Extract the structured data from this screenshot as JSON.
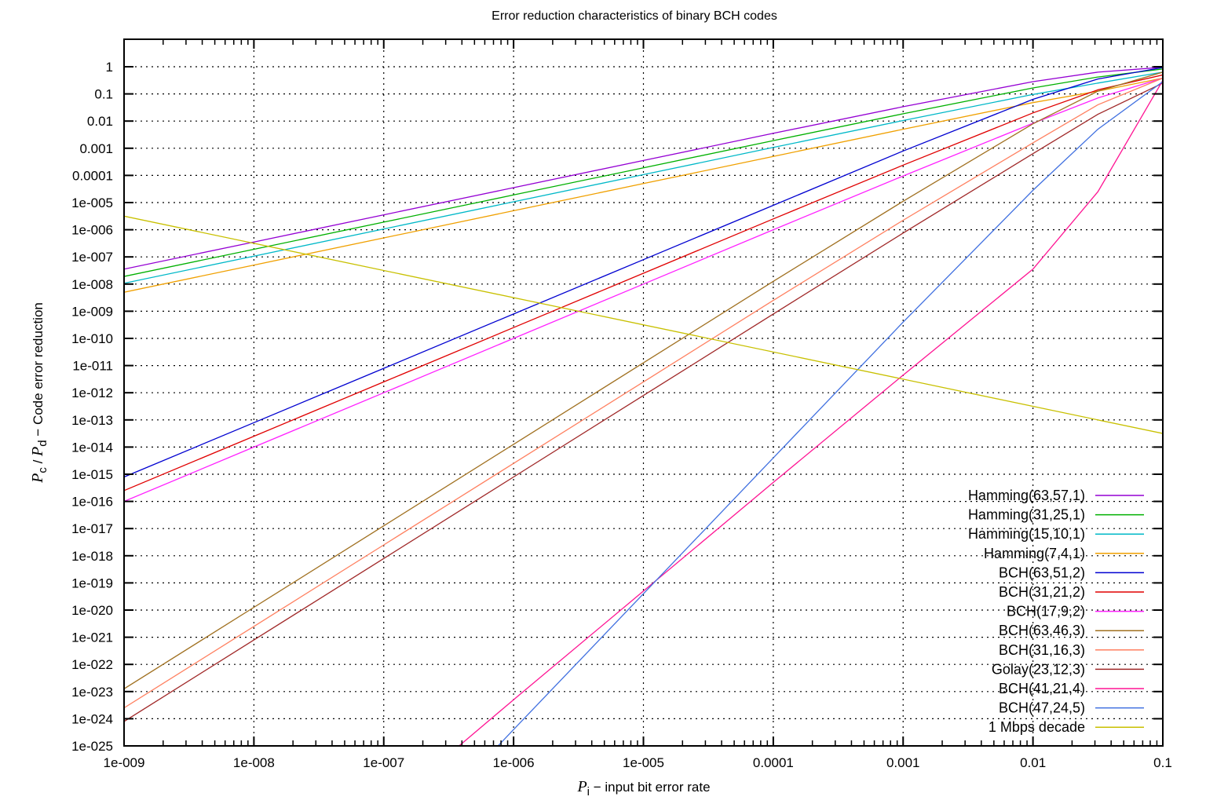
{
  "chart_data": {
    "type": "line",
    "title": "Error reduction characteristics of binary BCH codes",
    "xlabel": {
      "symbol": "P",
      "subscript": "i",
      "text": " − input bit error rate"
    },
    "ylabel": {
      "symbol1": "P",
      "sub1": "c",
      "sep": " / ",
      "symbol2": "P",
      "sub2": "d",
      "text": " − Code error reduction"
    },
    "xscale": "log",
    "yscale": "log",
    "xlim": [
      1e-09,
      0.1
    ],
    "ylim": [
      1e-25,
      10
    ],
    "grid": true,
    "legend_position": "bottom-right",
    "x_ticks": [
      "1e-009",
      "1e-008",
      "1e-007",
      "1e-006",
      "1e-005",
      "0.0001",
      "0.001",
      "0.01",
      "0.1"
    ],
    "y_ticks": [
      "1",
      "0.1",
      "0.01",
      "0.001",
      "0.0001",
      "1e-005",
      "1e-006",
      "1e-007",
      "1e-008",
      "1e-009",
      "1e-010",
      "1e-011",
      "1e-012",
      "1e-013",
      "1e-014",
      "1e-015",
      "1e-016",
      "1e-017",
      "1e-018",
      "1e-019",
      "1e-020",
      "1e-021",
      "1e-022",
      "1e-023",
      "1e-024",
      "1e-025"
    ],
    "series": [
      {
        "name": "Hamming(63,57,1)",
        "color": "#9400d3",
        "points_log10": [
          [
            -9,
            -7.45
          ],
          [
            -8,
            -6.45
          ],
          [
            -7,
            -5.45
          ],
          [
            -6,
            -4.45
          ],
          [
            -5,
            -3.45
          ],
          [
            -4,
            -2.45
          ],
          [
            -3,
            -1.47
          ],
          [
            -2,
            -0.55
          ],
          [
            -1.5,
            -0.2
          ],
          [
            -1,
            -0.02
          ]
        ]
      },
      {
        "name": "Hamming(31,25,1)",
        "color": "#00b000",
        "points_log10": [
          [
            -9,
            -7.72
          ],
          [
            -8,
            -6.72
          ],
          [
            -7,
            -5.72
          ],
          [
            -6,
            -4.72
          ],
          [
            -5,
            -3.72
          ],
          [
            -4,
            -2.72
          ],
          [
            -3,
            -1.73
          ],
          [
            -2,
            -0.78
          ],
          [
            -1.5,
            -0.38
          ],
          [
            -1,
            -0.08
          ]
        ]
      },
      {
        "name": "Hamming(15,10,1)",
        "color": "#00b8c8",
        "points_log10": [
          [
            -9,
            -7.97
          ],
          [
            -8,
            -6.97
          ],
          [
            -7,
            -5.97
          ],
          [
            -6,
            -4.97
          ],
          [
            -5,
            -3.97
          ],
          [
            -4,
            -2.97
          ],
          [
            -3,
            -1.98
          ],
          [
            -2,
            -1.02
          ],
          [
            -1.5,
            -0.6
          ],
          [
            -1,
            -0.2
          ]
        ]
      },
      {
        "name": "Hamming(7,4,1)",
        "color": "#f0a000",
        "points_log10": [
          [
            -9,
            -8.3
          ],
          [
            -8,
            -7.3
          ],
          [
            -7,
            -6.3
          ],
          [
            -6,
            -5.3
          ],
          [
            -5,
            -4.3
          ],
          [
            -4,
            -3.3
          ],
          [
            -3,
            -2.3
          ],
          [
            -2,
            -1.32
          ],
          [
            -1.5,
            -0.9
          ],
          [
            -1,
            -0.42
          ]
        ]
      },
      {
        "name": "BCH(63,51,2)",
        "color": "#0000d0",
        "points_log10": [
          [
            -9,
            -15.1
          ],
          [
            -8,
            -13.1
          ],
          [
            -7,
            -11.1
          ],
          [
            -6,
            -9.1
          ],
          [
            -5,
            -7.1
          ],
          [
            -4,
            -5.1
          ],
          [
            -3,
            -3.1
          ],
          [
            -2,
            -1.2
          ],
          [
            -1.5,
            -0.45
          ],
          [
            -1,
            -0.03
          ]
        ]
      },
      {
        "name": "BCH(31,21,2)",
        "color": "#e00000",
        "points_log10": [
          [
            -9,
            -15.6
          ],
          [
            -8,
            -13.6
          ],
          [
            -7,
            -11.6
          ],
          [
            -6,
            -9.6
          ],
          [
            -5,
            -7.6
          ],
          [
            -4,
            -5.6
          ],
          [
            -3,
            -3.62
          ],
          [
            -2,
            -1.7
          ],
          [
            -1.5,
            -0.85
          ],
          [
            -1,
            -0.3
          ]
        ]
      },
      {
        "name": "BCH(17,9,2)",
        "color": "#ff20ff",
        "points_log10": [
          [
            -9,
            -16.0
          ],
          [
            -8,
            -14.0
          ],
          [
            -7,
            -12.0
          ],
          [
            -6,
            -10.0
          ],
          [
            -5,
            -8.0
          ],
          [
            -4,
            -6.0
          ],
          [
            -3,
            -4.02
          ],
          [
            -2,
            -2.08
          ],
          [
            -1.5,
            -1.15
          ],
          [
            -1,
            -0.42
          ]
        ]
      },
      {
        "name": "BCH(63,46,3)",
        "color": "#a07020",
        "points_log10": [
          [
            -9,
            -22.9
          ],
          [
            -8,
            -19.9
          ],
          [
            -7,
            -16.9
          ],
          [
            -6,
            -13.9
          ],
          [
            -5,
            -10.9
          ],
          [
            -4,
            -7.9
          ],
          [
            -3,
            -4.95
          ],
          [
            -2,
            -2.1
          ],
          [
            -1.5,
            -0.9
          ],
          [
            -1,
            -0.2
          ]
        ]
      },
      {
        "name": "BCH(31,16,3)",
        "color": "#ff8060",
        "points_log10": [
          [
            -9,
            -23.6
          ],
          [
            -8,
            -20.6
          ],
          [
            -7,
            -17.6
          ],
          [
            -6,
            -14.6
          ],
          [
            -5,
            -11.6
          ],
          [
            -4,
            -8.6
          ],
          [
            -3,
            -5.65
          ],
          [
            -2,
            -2.8
          ],
          [
            -1.5,
            -1.4
          ],
          [
            -1,
            -0.42
          ]
        ]
      },
      {
        "name": "Golay(23,12,3)",
        "color": "#a02828",
        "points_log10": [
          [
            -9,
            -24.1
          ],
          [
            -8,
            -21.1
          ],
          [
            -7,
            -18.1
          ],
          [
            -6,
            -15.1
          ],
          [
            -5,
            -12.1
          ],
          [
            -4,
            -9.1
          ],
          [
            -3,
            -6.12
          ],
          [
            -2,
            -3.2
          ],
          [
            -1.5,
            -1.75
          ],
          [
            -1,
            -0.6
          ]
        ]
      },
      {
        "name": "BCH(41,21,4)",
        "color": "#ff1493",
        "points_log10": [
          [
            -6.42,
            -25
          ],
          [
            -6,
            -23.3
          ],
          [
            -5,
            -19.3
          ],
          [
            -4,
            -15.3
          ],
          [
            -3,
            -11.35
          ],
          [
            -2,
            -7.45
          ],
          [
            -1.5,
            -4.6
          ],
          [
            -1,
            -0.5
          ]
        ]
      },
      {
        "name": "BCH(47,24,5)",
        "color": "#4070e0",
        "points_log10": [
          [
            -6.12,
            -25
          ],
          [
            -6,
            -24.4
          ],
          [
            -5,
            -19.4
          ],
          [
            -4,
            -14.4
          ],
          [
            -3,
            -9.4
          ],
          [
            -2,
            -4.55
          ],
          [
            -1.5,
            -2.3
          ],
          [
            -1,
            -0.55
          ]
        ]
      },
      {
        "name": "1 Mbps decade",
        "color": "#c8c000",
        "points_log10": [
          [
            -9,
            -5.5
          ],
          [
            -1,
            -13.5
          ]
        ]
      }
    ]
  },
  "ui": {
    "title": "Error reduction characteristics of binary BCH codes"
  }
}
